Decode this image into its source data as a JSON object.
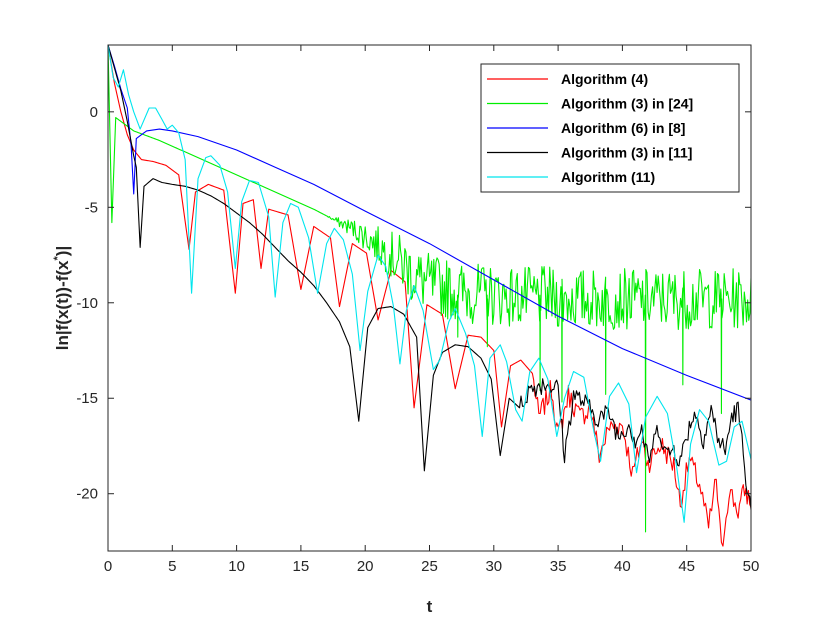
{
  "chart_data": {
    "type": "line",
    "title": "",
    "xlabel": "t",
    "ylabel": "ln|f(x(t))-f(x",
    "ylabel_star": "*",
    "ylabel_tail": ")|",
    "xlim": [
      0,
      50
    ],
    "ylim": [
      -23,
      3.5
    ],
    "xticks": [
      0,
      5,
      10,
      15,
      20,
      25,
      30,
      35,
      40,
      45,
      50
    ],
    "yticks": [
      0,
      -5,
      -10,
      -15,
      -20
    ],
    "grid": false,
    "legend_position": "top-right",
    "series": [
      {
        "name": "Algorithm (4)",
        "color": "#ff0000",
        "points": [
          [
            0,
            3.5
          ],
          [
            0.5,
            1.5
          ],
          [
            1,
            0
          ],
          [
            1.5,
            -1.2
          ],
          [
            2,
            -2
          ],
          [
            2.6,
            -2.5
          ],
          [
            3.5,
            -2.6
          ],
          [
            4.5,
            -2.8
          ],
          [
            5.5,
            -3.3
          ],
          [
            6.3,
            -7.2
          ],
          [
            6.8,
            -4.2
          ],
          [
            7.8,
            -3.8
          ],
          [
            9,
            -4.1
          ],
          [
            9.9,
            -9.5
          ],
          [
            10.5,
            -4.8
          ],
          [
            11.3,
            -4.6
          ],
          [
            11.9,
            -8.2
          ],
          [
            12.5,
            -5.1
          ],
          [
            14,
            -5.4
          ],
          [
            15,
            -9.3
          ],
          [
            16,
            -6
          ],
          [
            17.3,
            -6.6
          ],
          [
            18,
            -10.2
          ],
          [
            19,
            -6.9
          ],
          [
            20.1,
            -7.4
          ],
          [
            21,
            -10.9
          ],
          [
            22,
            -8.3
          ],
          [
            23.1,
            -8.9
          ],
          [
            23.8,
            -15.5
          ],
          [
            24.8,
            -10.1
          ],
          [
            26,
            -10.6
          ],
          [
            27,
            -14.5
          ],
          [
            28,
            -11.7
          ],
          [
            29,
            -11.8
          ],
          [
            30,
            -12.5
          ],
          [
            30.6,
            -16.5
          ],
          [
            31.3,
            -13.3
          ],
          [
            32.1,
            -13
          ],
          [
            33,
            -13.7
          ],
          [
            33.5,
            -16
          ],
          [
            34.5,
            -14.5
          ],
          [
            35,
            -17
          ],
          [
            35.8,
            -14.8
          ],
          [
            36.7,
            -16
          ],
          [
            37.5,
            -15.5
          ],
          [
            38.2,
            -18
          ],
          [
            39,
            -16.5
          ],
          [
            40,
            -16.4
          ],
          [
            40.8,
            -19
          ],
          [
            41.5,
            -17.2
          ],
          [
            42,
            -18.4
          ],
          [
            43,
            -17.4
          ],
          [
            44,
            -18.5
          ],
          [
            44.5,
            -20.5
          ],
          [
            45.2,
            -18.2
          ],
          [
            46,
            -19.5
          ],
          [
            46.7,
            -21.8
          ],
          [
            47.3,
            -19.2
          ],
          [
            47.7,
            -23
          ],
          [
            48.3,
            -19.8
          ],
          [
            49,
            -20.9
          ],
          [
            49.5,
            -19.8
          ],
          [
            50,
            -20.5
          ]
        ]
      },
      {
        "name": "Algorithm (3) in [24]",
        "color": "#00ee00",
        "points": [
          [
            0,
            3.5
          ],
          [
            0.3,
            -5.8
          ],
          [
            0.6,
            -0.3
          ],
          [
            1.2,
            -0.6
          ],
          [
            2,
            -1
          ],
          [
            4,
            -1.5
          ],
          [
            6,
            -2.1
          ],
          [
            8,
            -2.7
          ],
          [
            10,
            -3.3
          ],
          [
            12,
            -3.9
          ],
          [
            14,
            -4.5
          ],
          [
            16,
            -5.1
          ],
          [
            18,
            -5.8
          ],
          [
            19,
            -6.1
          ],
          [
            20,
            -6.5
          ],
          [
            21,
            -7
          ],
          [
            22,
            -7.5
          ],
          [
            23,
            -8
          ],
          [
            24,
            -8.7
          ],
          [
            25,
            -9
          ],
          [
            26,
            -9.2
          ],
          [
            27,
            -9.4
          ],
          [
            28,
            -9.5
          ],
          [
            30,
            -9.6
          ],
          [
            32,
            -9.7
          ],
          [
            34,
            -9.7
          ],
          [
            36,
            -9.8
          ],
          [
            38,
            -9.8
          ],
          [
            40,
            -9.8
          ],
          [
            42,
            -9.8
          ],
          [
            44,
            -9.8
          ],
          [
            46,
            -9.8
          ],
          [
            48,
            -9.8
          ],
          [
            50,
            -9.8
          ]
        ]
      },
      {
        "name": "Algorithm (6) in [8]",
        "color": "#0000ff",
        "points": [
          [
            0,
            3.5
          ],
          [
            0.5,
            2.4
          ],
          [
            1,
            1.2
          ],
          [
            1.5,
            0.2
          ],
          [
            1.8,
            -1.8
          ],
          [
            2,
            -4.3
          ],
          [
            2.2,
            -1.4
          ],
          [
            2.6,
            -1.2
          ],
          [
            3,
            -1
          ],
          [
            4,
            -0.9
          ],
          [
            5,
            -1
          ],
          [
            7,
            -1.3
          ],
          [
            10,
            -2
          ],
          [
            13,
            -2.9
          ],
          [
            16,
            -3.8
          ],
          [
            20,
            -5.2
          ],
          [
            25,
            -6.9
          ],
          [
            30,
            -8.8
          ],
          [
            35,
            -10.7
          ],
          [
            40,
            -12.4
          ],
          [
            45,
            -13.8
          ],
          [
            50,
            -15.1
          ]
        ]
      },
      {
        "name": "Algorithm (3) in [11]",
        "color": "#000000",
        "points": [
          [
            0,
            3.5
          ],
          [
            0.5,
            2.3
          ],
          [
            1,
            1.1
          ],
          [
            1.5,
            -0.5
          ],
          [
            2,
            -2.3
          ],
          [
            2.2,
            -2.9
          ],
          [
            2.5,
            -7.1
          ],
          [
            2.8,
            -3.9
          ],
          [
            3.5,
            -3.5
          ],
          [
            4.2,
            -3.7
          ],
          [
            5,
            -3.8
          ],
          [
            6,
            -3.9
          ],
          [
            7,
            -4.1
          ],
          [
            8,
            -4.4
          ],
          [
            9,
            -4.8
          ],
          [
            10,
            -5.3
          ],
          [
            11,
            -5.8
          ],
          [
            12,
            -6.4
          ],
          [
            13,
            -7.1
          ],
          [
            14,
            -7.8
          ],
          [
            15,
            -8.4
          ],
          [
            16,
            -9.1
          ],
          [
            17,
            -10
          ],
          [
            18,
            -11
          ],
          [
            18.8,
            -12.3
          ],
          [
            19.5,
            -16.2
          ],
          [
            20.2,
            -11.3
          ],
          [
            21,
            -10.3
          ],
          [
            22,
            -10.2
          ],
          [
            23,
            -10.6
          ],
          [
            24,
            -11.8
          ],
          [
            24.6,
            -18.8
          ],
          [
            25.3,
            -13.8
          ],
          [
            26,
            -12.6
          ],
          [
            27,
            -12.2
          ],
          [
            28,
            -12.3
          ],
          [
            29,
            -12.9
          ],
          [
            29.8,
            -14
          ],
          [
            30.5,
            -18
          ],
          [
            31.2,
            -15
          ],
          [
            32,
            -15.5
          ],
          [
            32.7,
            -14.6
          ],
          [
            33.5,
            -14.3
          ],
          [
            34,
            -14.2
          ],
          [
            35,
            -14.5
          ],
          [
            35.5,
            -18
          ],
          [
            36.2,
            -14.8
          ],
          [
            37,
            -15.2
          ],
          [
            38,
            -16
          ],
          [
            39,
            -15.8
          ],
          [
            39.7,
            -17
          ],
          [
            40.5,
            -16.3
          ],
          [
            41,
            -17.2
          ],
          [
            41.5,
            -16.6
          ],
          [
            42,
            -18.3
          ],
          [
            42.8,
            -16.5
          ],
          [
            43.5,
            -18
          ],
          [
            44,
            -17.6
          ],
          [
            44.5,
            -18.3
          ],
          [
            45,
            -16.9
          ],
          [
            45.6,
            -15.7
          ],
          [
            46.3,
            -17.1
          ],
          [
            46.9,
            -15.6
          ],
          [
            47.5,
            -17.2
          ],
          [
            48,
            -17.8
          ],
          [
            48.5,
            -15.9
          ],
          [
            49,
            -15.6
          ],
          [
            49.5,
            -18.5
          ],
          [
            50,
            -21
          ]
        ]
      },
      {
        "name": "Algorithm (11)",
        "color": "#00e5ee",
        "points": [
          [
            0,
            3.5
          ],
          [
            0.4,
            1.8
          ],
          [
            0.8,
            1.3
          ],
          [
            1.2,
            2.2
          ],
          [
            1.6,
            0.9
          ],
          [
            2,
            0
          ],
          [
            2.5,
            -0.9
          ],
          [
            3.2,
            0.2
          ],
          [
            3.7,
            0.2
          ],
          [
            4.2,
            -0.4
          ],
          [
            4.6,
            -0.9
          ],
          [
            5,
            -0.7
          ],
          [
            5.5,
            -1.1
          ],
          [
            6,
            -2.5
          ],
          [
            6.5,
            -9.5
          ],
          [
            7,
            -3.5
          ],
          [
            7.6,
            -2.4
          ],
          [
            8,
            -2.3
          ],
          [
            8.7,
            -2.8
          ],
          [
            9.3,
            -4.2
          ],
          [
            9.9,
            -8.2
          ],
          [
            10.4,
            -4.7
          ],
          [
            11,
            -3.6
          ],
          [
            11.7,
            -3.7
          ],
          [
            12.5,
            -5.5
          ],
          [
            13,
            -9.7
          ],
          [
            13.6,
            -5.8
          ],
          [
            14.2,
            -4.8
          ],
          [
            14.8,
            -5
          ],
          [
            15.6,
            -6.6
          ],
          [
            16.3,
            -9.5
          ],
          [
            17,
            -6.9
          ],
          [
            17.6,
            -6.1
          ],
          [
            18.3,
            -6.7
          ],
          [
            19,
            -8.5
          ],
          [
            19.6,
            -12.5
          ],
          [
            20.2,
            -9.4
          ],
          [
            21,
            -7.5
          ],
          [
            21.6,
            -8.1
          ],
          [
            22.2,
            -10.2
          ],
          [
            22.7,
            -13.2
          ],
          [
            23.2,
            -10.4
          ],
          [
            23.8,
            -9.1
          ],
          [
            24.5,
            -10.4
          ],
          [
            25.3,
            -13.5
          ],
          [
            25.8,
            -13
          ],
          [
            26.5,
            -11
          ],
          [
            27,
            -10.3
          ],
          [
            27.8,
            -11.6
          ],
          [
            28.5,
            -13.3
          ],
          [
            29.1,
            -17
          ],
          [
            29.7,
            -12.9
          ],
          [
            30.5,
            -12.2
          ],
          [
            31,
            -13.1
          ],
          [
            31.7,
            -15.6
          ],
          [
            32.2,
            -16.2
          ],
          [
            32.8,
            -13.6
          ],
          [
            33.5,
            -12.9
          ],
          [
            34.2,
            -14
          ],
          [
            34.9,
            -17
          ],
          [
            35.5,
            -15
          ],
          [
            36.2,
            -13.6
          ],
          [
            37,
            -13.9
          ],
          [
            37.8,
            -16.8
          ],
          [
            38.3,
            -18.3
          ],
          [
            39,
            -14.9
          ],
          [
            39.7,
            -14.2
          ],
          [
            40.5,
            -15.3
          ],
          [
            41.1,
            -18.9
          ],
          [
            41.8,
            -16
          ],
          [
            42.7,
            -14.9
          ],
          [
            43.5,
            -15.8
          ],
          [
            44.2,
            -18.5
          ],
          [
            44.8,
            -21.5
          ],
          [
            45.3,
            -17.4
          ],
          [
            46,
            -15.6
          ],
          [
            46.7,
            -16.2
          ],
          [
            47.5,
            -18.5
          ],
          [
            48.1,
            -18.3
          ],
          [
            48.7,
            -16.5
          ],
          [
            49.3,
            -16.2
          ],
          [
            50,
            -18.2
          ]
        ]
      }
    ]
  }
}
